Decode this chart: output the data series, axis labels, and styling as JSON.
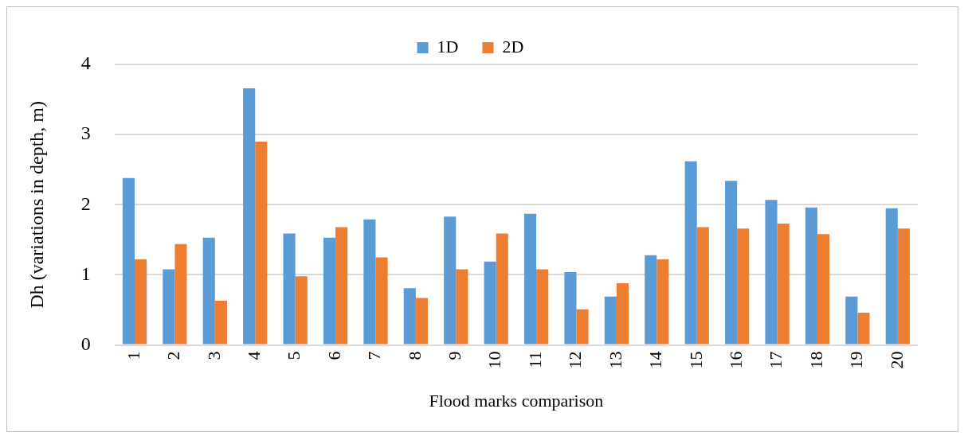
{
  "chart_data": {
    "type": "bar",
    "xlabel": "Flood marks comparison",
    "ylabel": "Dh (variations in depth, m)",
    "categories": [
      "1",
      "2",
      "3",
      "4",
      "5",
      "6",
      "7",
      "8",
      "9",
      "10",
      "11",
      "12",
      "13",
      "14",
      "15",
      "16",
      "17",
      "18",
      "19",
      "20"
    ],
    "series": [
      {
        "name": "1D",
        "color": "#5b9bd5",
        "values": [
          2.38,
          1.08,
          1.53,
          3.66,
          1.59,
          1.53,
          1.79,
          0.81,
          1.83,
          1.19,
          1.87,
          1.04,
          0.69,
          1.28,
          2.62,
          2.34,
          2.07,
          1.96,
          0.69,
          1.95
        ]
      },
      {
        "name": "2D",
        "color": "#ed7d31",
        "values": [
          1.22,
          1.44,
          0.63,
          2.9,
          0.98,
          1.68,
          1.25,
          0.67,
          1.08,
          1.59,
          1.08,
          0.51,
          0.88,
          1.22,
          1.68,
          1.66,
          1.73,
          1.58,
          0.46,
          1.66
        ]
      }
    ],
    "ylim": [
      0,
      4
    ],
    "yticks": [
      0,
      1,
      2,
      3,
      4
    ],
    "grid": "y",
    "legend": "top"
  }
}
